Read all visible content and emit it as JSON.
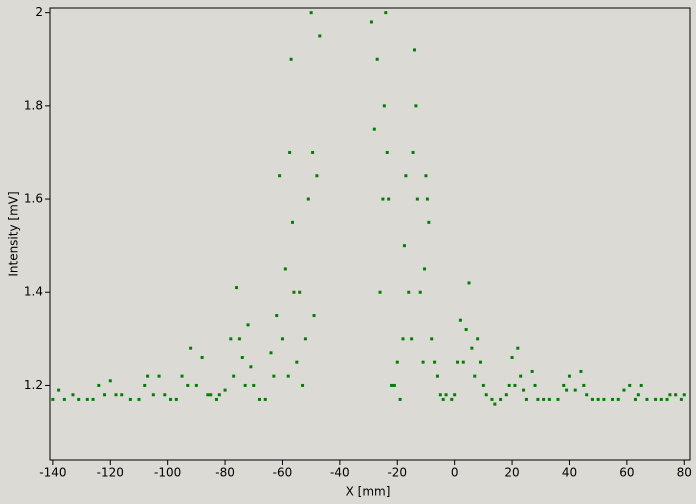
{
  "chart_data": {
    "type": "scatter",
    "xlabel": "X [mm]",
    "ylabel": "Intensity [mV]",
    "color": "#008000",
    "xlim": [
      -141,
      82
    ],
    "ylim": [
      1.04,
      2.01
    ],
    "xticks": [
      -140,
      -120,
      -100,
      -80,
      -60,
      -40,
      -20,
      0,
      20,
      40,
      60,
      80
    ],
    "yticks": [
      1.2,
      1.4,
      1.6,
      1.8,
      2
    ],
    "x": [
      -140,
      -138,
      -136,
      -133,
      -131,
      -128,
      -126,
      -124,
      -122,
      -120,
      -118,
      -116,
      -113,
      -110,
      -108,
      -107,
      -105,
      -103,
      -101,
      -99,
      -97,
      -95,
      -93,
      -92,
      -90,
      -88,
      -86,
      -85,
      -83,
      -82,
      -80,
      -78,
      -77,
      -76,
      -75,
      -74,
      -73,
      -72,
      -71,
      -70,
      -68,
      -66,
      -64,
      -63,
      -62,
      -61,
      -60,
      -59,
      -58,
      -57.5,
      -57,
      -56.5,
      -56,
      -55,
      -54,
      -53,
      -52,
      -51,
      -50,
      -49.5,
      -49,
      -48,
      -47,
      -29,
      -28,
      -27,
      -26,
      -25,
      -24.5,
      -24,
      -23.5,
      -23,
      -22,
      -21,
      -20,
      -19,
      -18,
      -17.5,
      -17,
      -16,
      -15,
      -14.5,
      -14,
      -13.5,
      -13,
      -12,
      -11,
      -10.5,
      -10,
      -9.5,
      -9,
      -8,
      -7,
      -6,
      -5,
      -4,
      -3,
      -1,
      0,
      1,
      2,
      3,
      4,
      5,
      6,
      7,
      8,
      9,
      10,
      11,
      13,
      14,
      16,
      18,
      19,
      20,
      21,
      22,
      23,
      24,
      25,
      27,
      28,
      29,
      31,
      33,
      36,
      38,
      39,
      40,
      42,
      44,
      45,
      46,
      48,
      50,
      52,
      55,
      57,
      59,
      61,
      63,
      64,
      65,
      67,
      70,
      72,
      74,
      75,
      77,
      79,
      80
    ],
    "values": [
      1.17,
      1.19,
      1.17,
      1.18,
      1.17,
      1.17,
      1.17,
      1.2,
      1.18,
      1.21,
      1.18,
      1.18,
      1.17,
      1.17,
      1.2,
      1.22,
      1.18,
      1.22,
      1.18,
      1.17,
      1.17,
      1.22,
      1.2,
      1.28,
      1.2,
      1.26,
      1.18,
      1.18,
      1.17,
      1.18,
      1.19,
      1.3,
      1.22,
      1.41,
      1.3,
      1.26,
      1.2,
      1.33,
      1.24,
      1.2,
      1.17,
      1.17,
      1.27,
      1.22,
      1.35,
      1.65,
      1.3,
      1.45,
      1.22,
      1.7,
      1.9,
      1.55,
      1.4,
      1.25,
      1.4,
      1.2,
      1.3,
      1.6,
      2.0,
      1.7,
      1.35,
      1.65,
      1.95,
      1.98,
      1.75,
      1.9,
      1.4,
      1.6,
      1.8,
      2.0,
      1.7,
      1.6,
      1.2,
      1.2,
      1.25,
      1.17,
      1.3,
      1.5,
      1.65,
      1.4,
      1.3,
      1.7,
      1.92,
      1.8,
      1.6,
      1.4,
      1.25,
      1.45,
      1.65,
      1.6,
      1.55,
      1.3,
      1.25,
      1.22,
      1.18,
      1.17,
      1.18,
      1.17,
      1.18,
      1.25,
      1.34,
      1.25,
      1.32,
      1.42,
      1.28,
      1.22,
      1.3,
      1.25,
      1.2,
      1.18,
      1.17,
      1.16,
      1.17,
      1.18,
      1.2,
      1.26,
      1.2,
      1.28,
      1.22,
      1.19,
      1.17,
      1.23,
      1.2,
      1.17,
      1.17,
      1.17,
      1.17,
      1.2,
      1.19,
      1.22,
      1.19,
      1.23,
      1.2,
      1.18,
      1.17,
      1.17,
      1.17,
      1.17,
      1.17,
      1.19,
      1.2,
      1.17,
      1.18,
      1.2,
      1.17,
      1.17,
      1.17,
      1.17,
      1.18,
      1.18,
      1.17,
      1.18
    ]
  }
}
